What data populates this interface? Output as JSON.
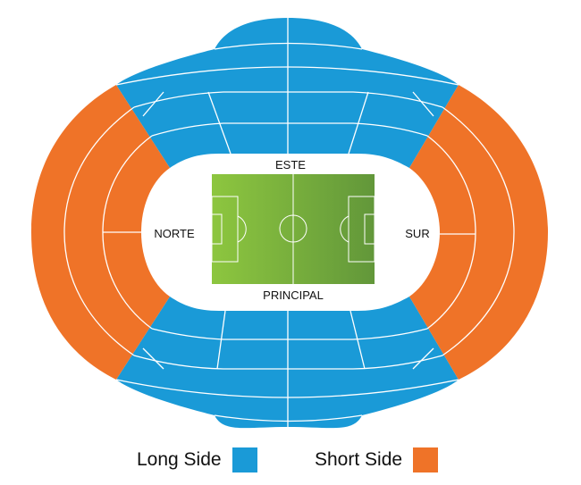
{
  "colors": {
    "long_side": "#1a9ad7",
    "short_side": "#ef7328",
    "pitch_light": "#8dc63f",
    "pitch_dark": "#62973a",
    "lines": "#ffffff"
  },
  "stands": {
    "north": "NORTE",
    "south": "SUR",
    "east": "ESTE",
    "main": "PRINCIPAL"
  },
  "legend": {
    "long_side_label": "Long Side",
    "short_side_label": "Short Side"
  }
}
